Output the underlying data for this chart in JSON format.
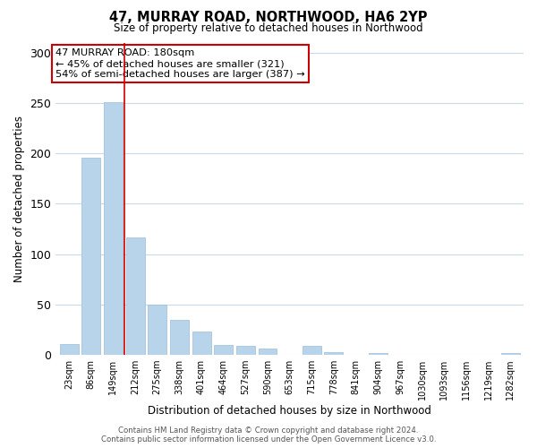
{
  "title": "47, MURRAY ROAD, NORTHWOOD, HA6 2YP",
  "subtitle": "Size of property relative to detached houses in Northwood",
  "xlabel": "Distribution of detached houses by size in Northwood",
  "ylabel": "Number of detached properties",
  "bar_labels": [
    "23sqm",
    "86sqm",
    "149sqm",
    "212sqm",
    "275sqm",
    "338sqm",
    "401sqm",
    "464sqm",
    "527sqm",
    "590sqm",
    "653sqm",
    "715sqm",
    "778sqm",
    "841sqm",
    "904sqm",
    "967sqm",
    "1030sqm",
    "1093sqm",
    "1156sqm",
    "1219sqm",
    "1282sqm"
  ],
  "bar_values": [
    11,
    196,
    251,
    117,
    50,
    35,
    23,
    10,
    9,
    6,
    0,
    9,
    3,
    0,
    2,
    0,
    0,
    0,
    0,
    0,
    2
  ],
  "bar_color": "#b8d4ea",
  "bar_edge_color": "#9dbdd8",
  "vline_color": "#cc0000",
  "ylim": [
    0,
    310
  ],
  "yticks": [
    0,
    50,
    100,
    150,
    200,
    250,
    300
  ],
  "annotation_title": "47 MURRAY ROAD: 180sqm",
  "annotation_line1": "← 45% of detached houses are smaller (321)",
  "annotation_line2": "54% of semi-detached houses are larger (387) →",
  "annotation_box_color": "#ffffff",
  "annotation_box_edge": "#cc0000",
  "footer1": "Contains HM Land Registry data © Crown copyright and database right 2024.",
  "footer2": "Contains public sector information licensed under the Open Government Licence v3.0.",
  "background_color": "#ffffff",
  "grid_color": "#ccd9e8"
}
